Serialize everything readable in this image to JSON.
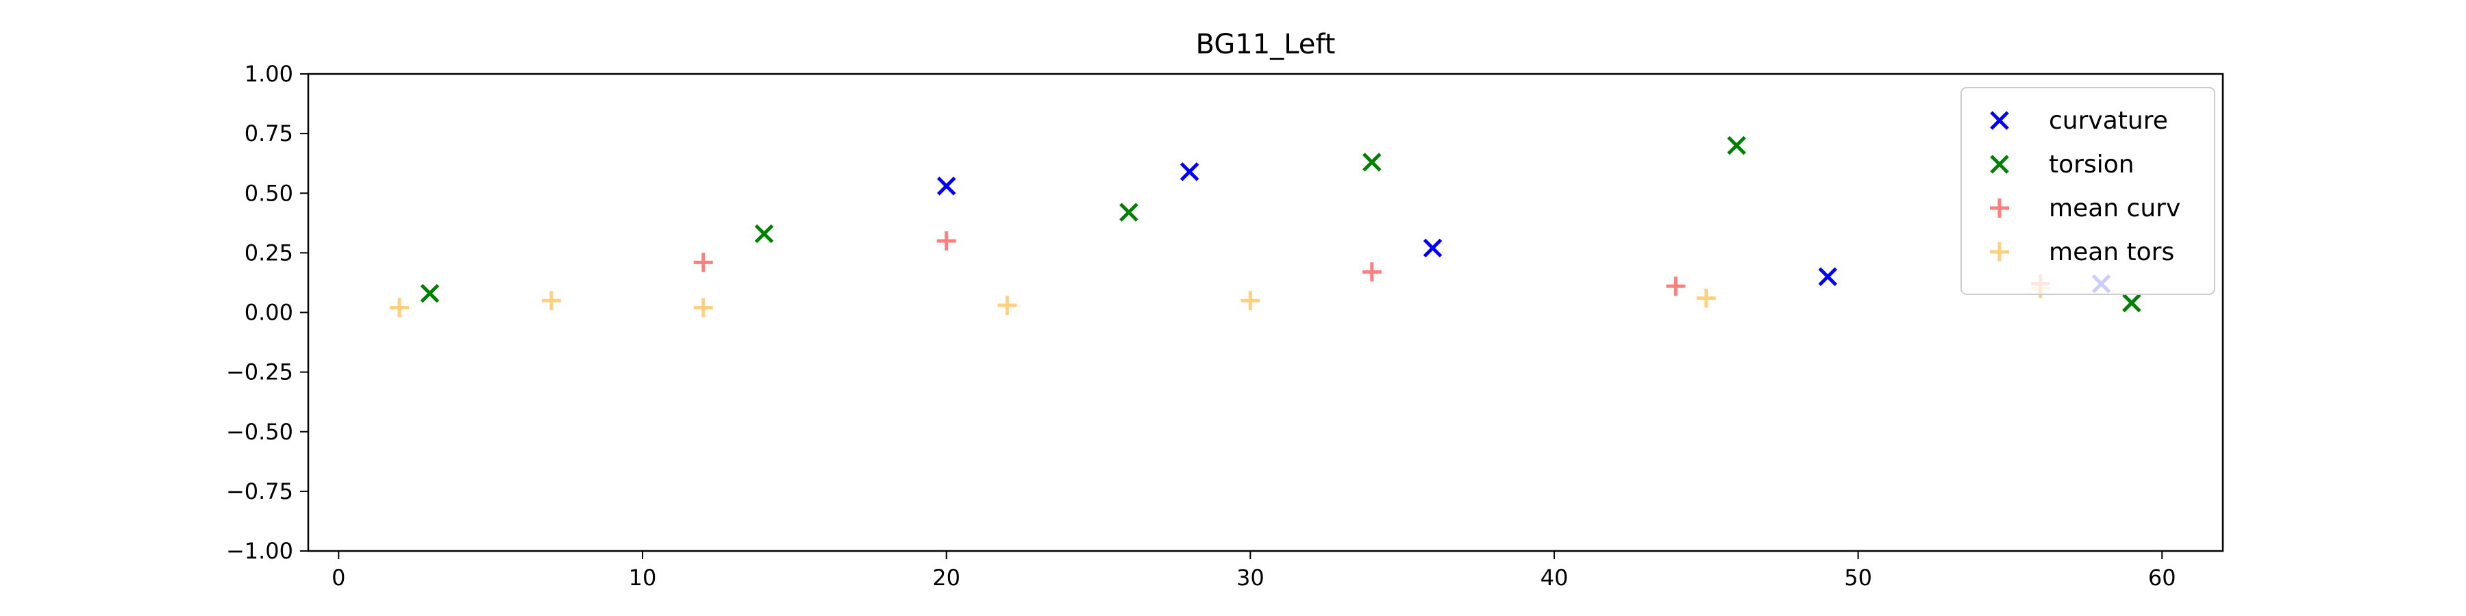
{
  "chart_data": {
    "type": "scatter",
    "title": "BG11_Left",
    "xlabel": "",
    "ylabel": "",
    "xlim": [
      -1,
      62
    ],
    "ylim": [
      -1.0,
      1.0
    ],
    "xticks": [
      0,
      10,
      20,
      30,
      40,
      50,
      60
    ],
    "xtick_labels": [
      "0",
      "10",
      "20",
      "30",
      "40",
      "50",
      "60"
    ],
    "yticks": [
      1.0,
      0.75,
      0.5,
      0.25,
      0.0,
      -0.25,
      -0.5,
      -0.75,
      -1.0
    ],
    "ytick_labels": [
      "1.00",
      "0.75",
      "0.50",
      "0.25",
      "0.00",
      "−0.25",
      "−0.50",
      "−0.75",
      "−1.00"
    ],
    "grid": false,
    "legend_position": "top-right",
    "series": [
      {
        "name": "curvature",
        "marker": "x",
        "color": "#0000ff",
        "opacity": 1,
        "points": [
          [
            20,
            0.53
          ],
          [
            28,
            0.59
          ],
          [
            36,
            0.27
          ],
          [
            49,
            0.15
          ],
          [
            58,
            0.12
          ]
        ]
      },
      {
        "name": "torsion",
        "marker": "x",
        "color": "#008000",
        "opacity": 1,
        "points": [
          [
            3,
            0.08
          ],
          [
            14,
            0.33
          ],
          [
            26,
            0.42
          ],
          [
            34,
            0.63
          ],
          [
            46,
            0.7
          ],
          [
            59,
            0.04
          ]
        ]
      },
      {
        "name": "mean curv",
        "marker": "+",
        "color": "#ff0000",
        "opacity": 0.5,
        "points": [
          [
            12,
            0.21
          ],
          [
            20,
            0.3
          ],
          [
            34,
            0.17
          ],
          [
            44,
            0.11
          ],
          [
            56,
            0.12
          ]
        ]
      },
      {
        "name": "mean tors",
        "marker": "+",
        "color": "#ffa500",
        "opacity": 0.5,
        "points": [
          [
            2,
            0.02
          ],
          [
            7,
            0.05
          ],
          [
            12,
            0.02
          ],
          [
            22,
            0.03
          ],
          [
            30,
            0.05
          ],
          [
            45,
            0.06
          ],
          [
            56,
            0.1
          ]
        ]
      }
    ]
  }
}
